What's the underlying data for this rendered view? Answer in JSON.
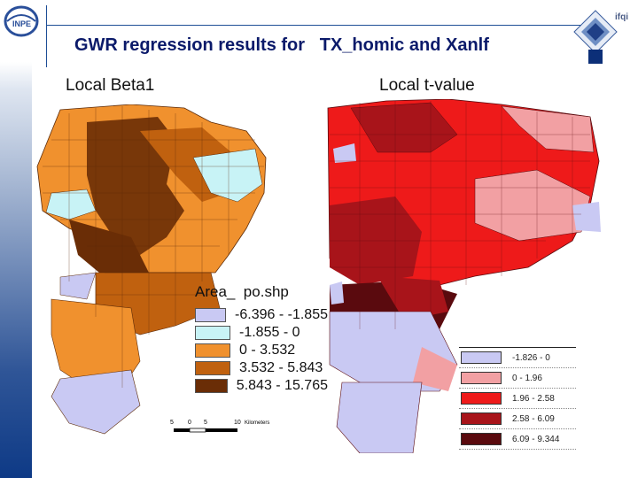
{
  "header": {
    "title": "GWR regression results for   TX_homic and Xanlf",
    "brand": "ifqi",
    "logo_text": "INPE"
  },
  "maps": {
    "left_title": "Local Beta1",
    "right_title": "Local t-value"
  },
  "legend_beta": {
    "title": "Area_  po.shp",
    "items": [
      {
        "label": "-6.396 - -1.855",
        "color": "#c9c9f3"
      },
      {
        "label": "-1.855 - 0",
        "color": "#c8f3f6"
      },
      {
        "label": "0 - 3.532",
        "color": "#f0912e"
      },
      {
        "label": "3.532 - 5.843",
        "color": "#c0610f"
      },
      {
        "label": "5.843 - 15.765",
        "color": "#6a2d06"
      }
    ]
  },
  "scale_bar": {
    "ticks": [
      "5",
      "0",
      "5",
      "10"
    ],
    "unit": "Kilometers"
  },
  "legend_t": {
    "items": [
      {
        "label": "-1.826 - 0",
        "color": "#c9c9f3"
      },
      {
        "label": "0 - 1.96",
        "color": "#f2a0a3"
      },
      {
        "label": "1.96 - 2.58",
        "color": "#ee1a1a"
      },
      {
        "label": "2.58 - 6.09",
        "color": "#a8141a"
      },
      {
        "label": "6.09 - 9.344",
        "color": "#5a0a0e"
      }
    ]
  }
}
